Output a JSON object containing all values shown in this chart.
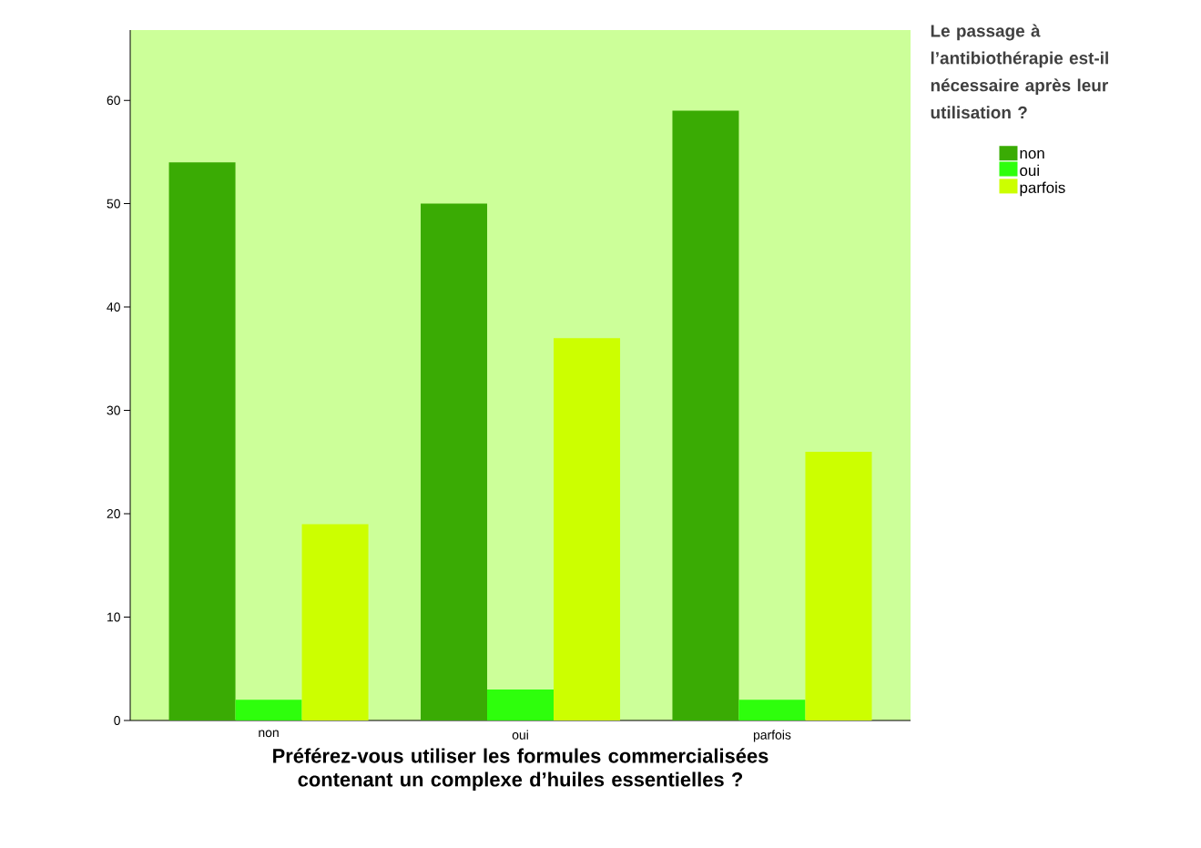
{
  "chart_data": {
    "type": "bar",
    "xlabel": "Préférez-vous utiliser les formules commercialisées contenant un complexe d’huiles essentielles ?",
    "legend_title": "Le passage à l’antibiothérapie est-il nécessaire après leur utilisation ?",
    "categories": [
      "non",
      "oui",
      "parfois"
    ],
    "series": [
      {
        "name": "non",
        "color": "#3aab04",
        "values": [
          54,
          50,
          59
        ]
      },
      {
        "name": "oui",
        "color": "#2eff0c",
        "values": [
          2,
          3,
          2
        ]
      },
      {
        "name": "parfois",
        "color": "#ccff00",
        "values": [
          19,
          37,
          26
        ]
      }
    ],
    "ylim": [
      0,
      66.8
    ],
    "yticks": [
      0,
      10,
      20,
      30,
      40,
      50,
      60
    ],
    "grid": false,
    "legend": "top right"
  }
}
